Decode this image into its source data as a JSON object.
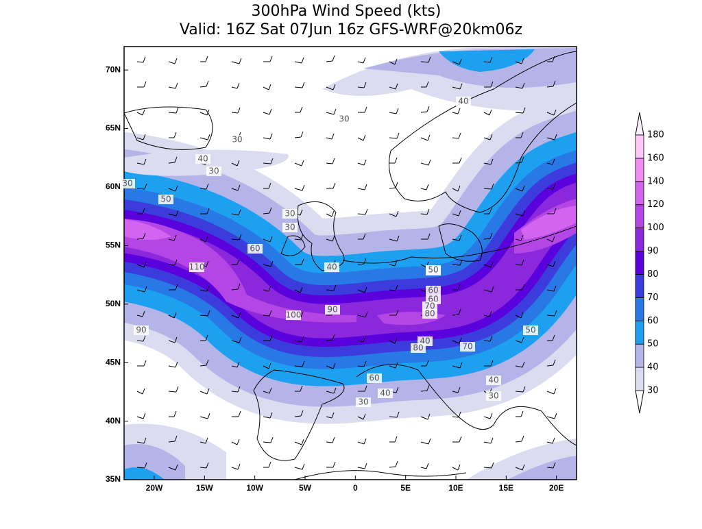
{
  "title": [
    "300hPa Wind Speed (kts)",
    "Valid: 16Z Sat 07Jun 16z GFS-WRF@20km06z"
  ],
  "lonlim": [
    -23,
    22
  ],
  "latlim": [
    35,
    72
  ],
  "lon_ticks": [
    {
      "value": -20,
      "label": "20W"
    },
    {
      "value": -15,
      "label": "15W"
    },
    {
      "value": -10,
      "label": "10W"
    },
    {
      "value": -5,
      "label": "5W"
    },
    {
      "value": 0,
      "label": "0"
    },
    {
      "value": 5,
      "label": "5E"
    },
    {
      "value": 10,
      "label": "10E"
    },
    {
      "value": 15,
      "label": "15E"
    },
    {
      "value": 20,
      "label": "20E"
    }
  ],
  "lat_ticks": [
    {
      "value": 70,
      "label": "70N"
    },
    {
      "value": 65,
      "label": "65N"
    },
    {
      "value": 60,
      "label": "60N"
    },
    {
      "value": 55,
      "label": "55N"
    },
    {
      "value": 50,
      "label": "50N"
    },
    {
      "value": 45,
      "label": "45N"
    },
    {
      "value": 40,
      "label": "40N"
    },
    {
      "value": 35,
      "label": "35N"
    }
  ],
  "colorbar": {
    "levels": [
      30,
      40,
      50,
      60,
      70,
      80,
      90,
      100,
      120,
      140,
      160,
      180
    ],
    "colors": [
      "#dcdcf0",
      "#b4b4e8",
      "#1ea0f0",
      "#2878e6",
      "#3c3cdc",
      "#5a00dc",
      "#8c28dc",
      "#b446e6",
      "#d264f0",
      "#f08cf0",
      "#ffc8fa"
    ]
  },
  "contour_labels": [
    "30",
    "40",
    "30",
    "30",
    "40",
    "60",
    "50",
    "30",
    "30",
    "30",
    "60",
    "110",
    "40",
    "50",
    "60",
    "70",
    "80",
    "90",
    "100",
    "90",
    "40",
    "80",
    "70",
    "60",
    "50",
    "30",
    "50",
    "40",
    "30",
    "40"
  ]
}
